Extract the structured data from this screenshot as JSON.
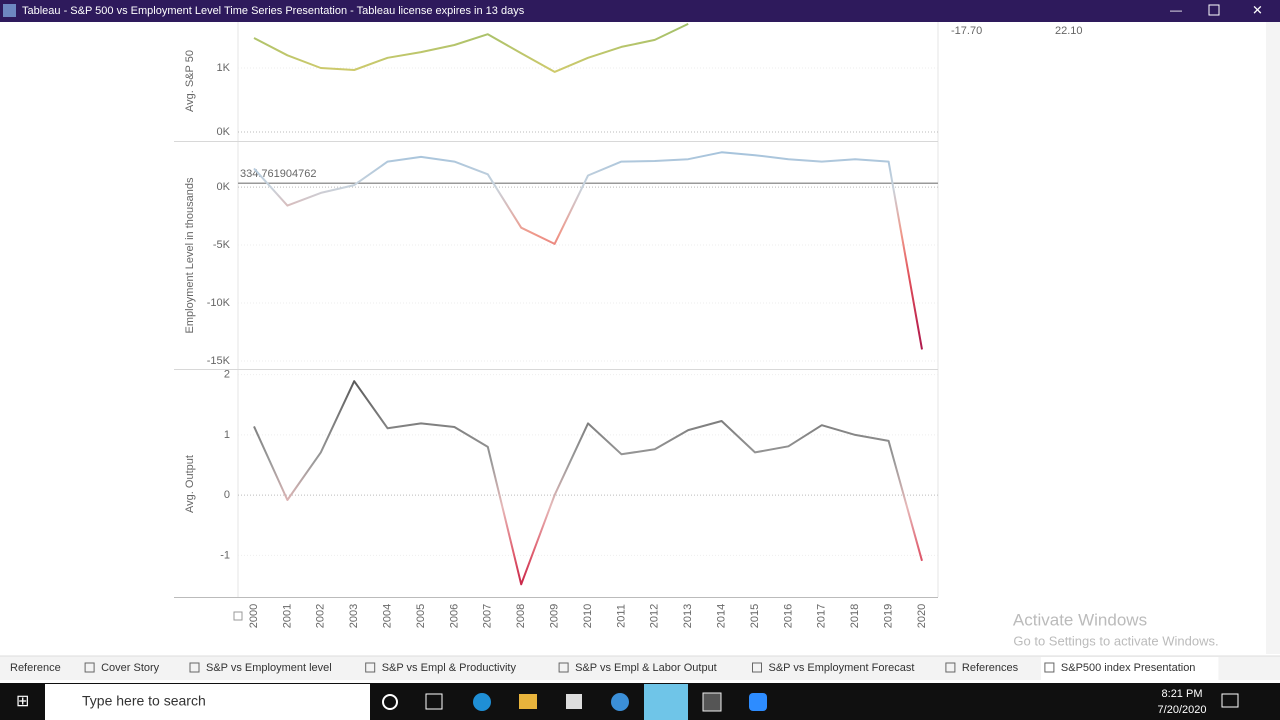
{
  "window": {
    "title": "Tableau - S&P 500 vs Employment Level Time Series Presentation - Tableau license expires in 13 days"
  },
  "header_values": [
    "-17.70",
    "22.10"
  ],
  "years": [
    "2000",
    "2001",
    "2002",
    "2003",
    "2004",
    "2005",
    "2006",
    "2007",
    "2008",
    "2009",
    "2010",
    "2011",
    "2012",
    "2013",
    "2014",
    "2015",
    "2016",
    "2017",
    "2018",
    "2019",
    "2020"
  ],
  "panes": [
    {
      "type": "line",
      "y_label": "Avg. S&P 50",
      "ylim": [
        -125,
        1720
      ],
      "yticks": [
        {
          "value": 0,
          "label": "0K"
        },
        {
          "value": 1000,
          "label": "1K"
        }
      ],
      "values": [
        1470,
        1200,
        1000,
        970,
        1160,
        1250,
        1360,
        1530,
        1230,
        940,
        1160,
        1330,
        1440,
        1690,
        null,
        null,
        null,
        null,
        null,
        null,
        null
      ],
      "colors": [
        "#9fbf6a",
        "#d8cc6c",
        "#e6d98a"
      ]
    },
    {
      "type": "line",
      "y_label": "Employment Level in thousands",
      "ylim": [
        -15600,
        3800
      ],
      "yticks": [
        {
          "value": -15000,
          "label": "-15K"
        },
        {
          "value": -10000,
          "label": "-10K"
        },
        {
          "value": -5000,
          "label": "-5K"
        },
        {
          "value": 0,
          "label": "0K"
        }
      ],
      "values": [
        1600,
        -1600,
        -500,
        170,
        2200,
        2600,
        2200,
        1100,
        -3500,
        -4900,
        1000,
        2200,
        2250,
        2400,
        3000,
        2750,
        2400,
        2200,
        2400,
        2200,
        -14000
      ],
      "reference_line": 334.761904762,
      "colors": [
        "#9cbfdc",
        "#c9d3dc",
        "#ef9a8c",
        "#e0505a",
        "#c02850",
        "#a0104a"
      ]
    },
    {
      "type": "line",
      "y_label": "Avg. Output",
      "ylim": [
        -1.69,
        2.06
      ],
      "yticks": [
        -1,
        0,
        1,
        2
      ],
      "values": [
        1.14,
        -0.08,
        0.71,
        1.89,
        1.11,
        1.19,
        1.13,
        0.8,
        -1.48,
        0,
        1.19,
        0.68,
        0.76,
        1.08,
        1.23,
        0.71,
        0.81,
        1.16,
        1.0,
        0.9,
        -1.09
      ],
      "colors": [
        "#505050",
        "#7a7a7a",
        "#9a9a9a",
        "#e6b8b8",
        "#e06070",
        "#c0103a"
      ]
    }
  ],
  "tabs": [
    "Reference",
    "Cover Story",
    "S&P vs Employment level",
    "S&P vs Empl & Productivity",
    "S&P vs Empl & Labor Output",
    "S&P vs Employment Forecast",
    "References",
    "S&P500 index Presentation"
  ],
  "watermark": {
    "title": "Activate Windows",
    "subtitle": "Go to Settings to activate Windows."
  },
  "taskbar": {
    "search": "Type here to search",
    "time": "8:21 PM",
    "date": "7/20/2020"
  }
}
